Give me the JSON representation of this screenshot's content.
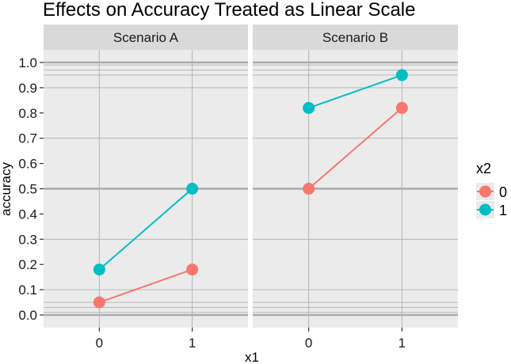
{
  "chart_data": {
    "type": "line",
    "title": "Effects on Accuracy Treated as Linear Scale",
    "xlabel": "x1",
    "ylabel": "accuracy",
    "x": [
      0,
      1
    ],
    "x_tick_labels": [
      "0",
      "1"
    ],
    "ylim": [
      -0.05,
      1.05
    ],
    "y_ticks": [
      0.0,
      0.1,
      0.2,
      0.3,
      0.4,
      0.5,
      0.6,
      0.7,
      0.8,
      0.9,
      1.0
    ],
    "y_tick_labels": [
      "0.0",
      "0.1",
      "0.2",
      "0.3",
      "0.4",
      "0.5",
      "0.6",
      "0.7",
      "0.8",
      "0.9",
      "1.0"
    ],
    "grid_lines": [
      0,
      0.01,
      0.03,
      0.05,
      0.1,
      0.3,
      0.5,
      0.7,
      0.9,
      0.95,
      0.97,
      0.99,
      1.0
    ],
    "grid_major": [
      0,
      0.5,
      1.0
    ],
    "legend": {
      "title": "x2",
      "placement": "right",
      "entries": [
        {
          "label": "0",
          "color": "#F8766D"
        },
        {
          "label": "1",
          "color": "#00BFC4"
        }
      ]
    },
    "panels": [
      {
        "strip": "Scenario A",
        "series": [
          {
            "group": "0",
            "color": "#F8766D",
            "values": [
              0.05,
              0.18
            ]
          },
          {
            "group": "1",
            "color": "#00BFC4",
            "values": [
              0.18,
              0.5
            ]
          }
        ]
      },
      {
        "strip": "Scenario B",
        "series": [
          {
            "group": "0",
            "color": "#F8766D",
            "values": [
              0.5,
              0.82
            ]
          },
          {
            "group": "1",
            "color": "#00BFC4",
            "values": [
              0.82,
              0.95
            ]
          }
        ]
      }
    ],
    "grid": true
  }
}
